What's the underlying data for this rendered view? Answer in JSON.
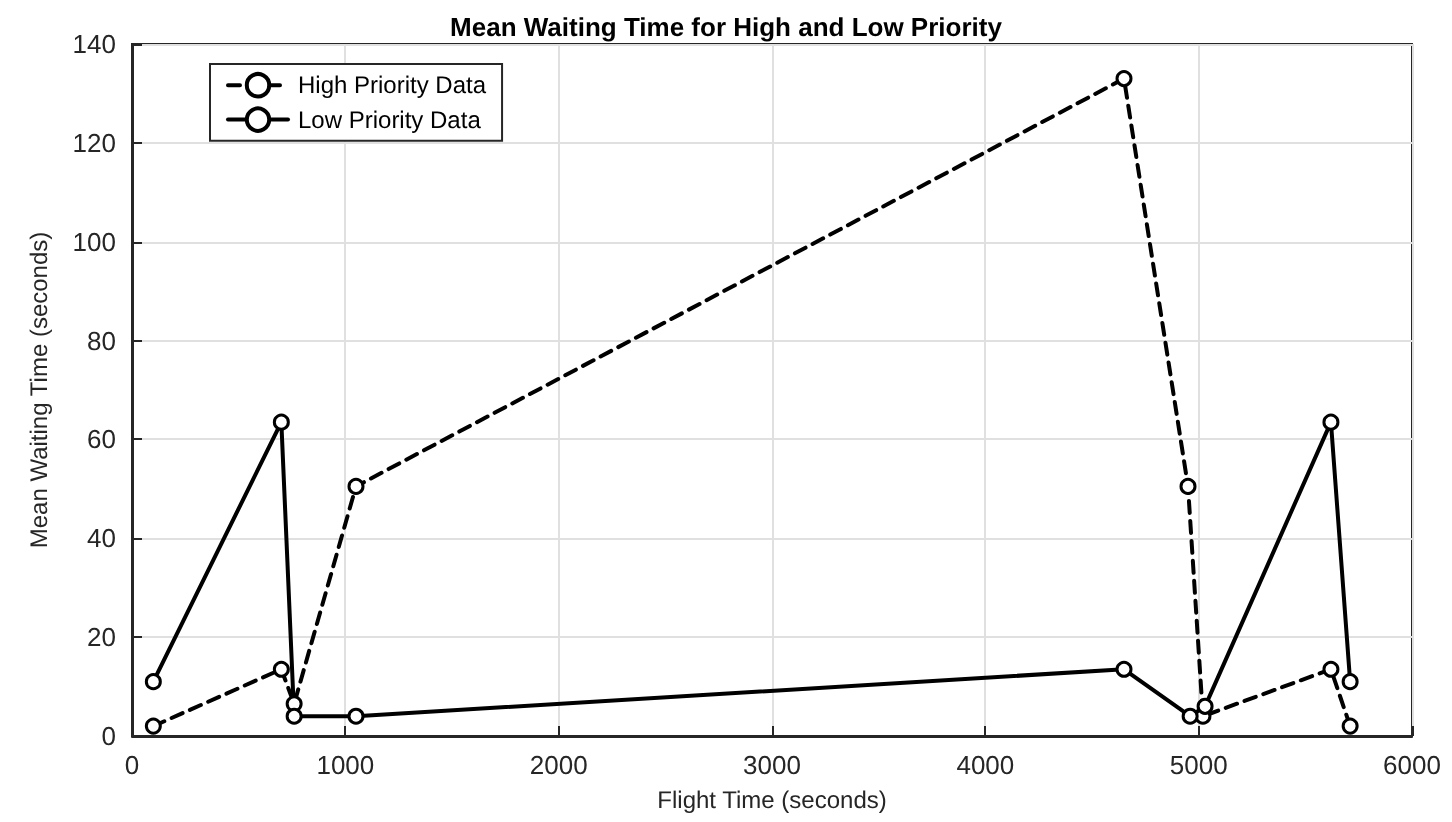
{
  "chart_data": {
    "type": "line",
    "title": "Mean Waiting Time for High and Low Priority",
    "xlabel": "Flight Time (seconds)",
    "ylabel": "Mean Waiting Time (seconds)",
    "xlim": [
      0,
      6000
    ],
    "xticks": [
      0,
      1000,
      2000,
      3000,
      4000,
      5000,
      6000
    ],
    "ylim": [
      0,
      140
    ],
    "yticks": [
      0,
      20,
      40,
      60,
      80,
      100,
      120,
      140
    ],
    "grid": true,
    "legend": "top left",
    "marker": "circle",
    "series": [
      {
        "name": "High Priority Data",
        "color": "#000000",
        "line_style": "dashed",
        "x": [
          100,
          700,
          760,
          1050,
          4650,
          4950,
          5020,
          5620,
          5710
        ],
        "values": [
          2,
          13.5,
          6.5,
          50.5,
          133,
          50.5,
          4,
          13.5,
          2
        ]
      },
      {
        "name": "Low Priority Data",
        "color": "#000000",
        "line_style": "solid",
        "x": [
          100,
          700,
          760,
          1050,
          4650,
          4960,
          5030,
          5620,
          5710
        ],
        "values": [
          11,
          63.5,
          4,
          4,
          13.5,
          4,
          6,
          63.5,
          11
        ]
      }
    ]
  }
}
